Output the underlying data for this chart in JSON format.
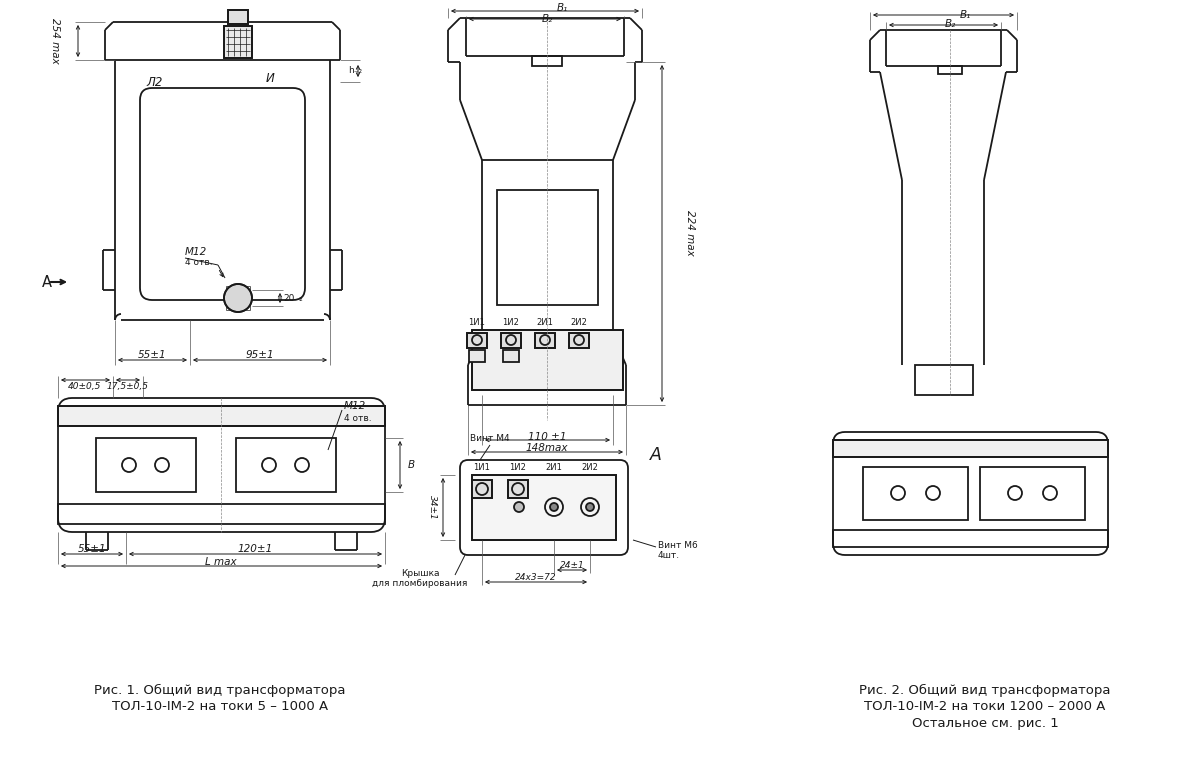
{
  "bg_color": "#ffffff",
  "line_color": "#1a1a1a",
  "caption1_line1": "Рис. 1. Общий вид трансформатора",
  "caption1_line2": "ТОЛ-10-IM-2 на токи 5 – 1000 А",
  "caption2_line1": "Рис. 2. Общий вид трансформатора",
  "caption2_line2": "ТОЛ-10-IM-2 на токи 1200 – 2000 А",
  "caption2_line3": "Остальное см. рис. 1",
  "fs": 7.5,
  "fs_cap": 9.5,
  "fs_small": 6.5,
  "lw": 1.3,
  "lw_thin": 0.7,
  "lw_dim": 0.7
}
